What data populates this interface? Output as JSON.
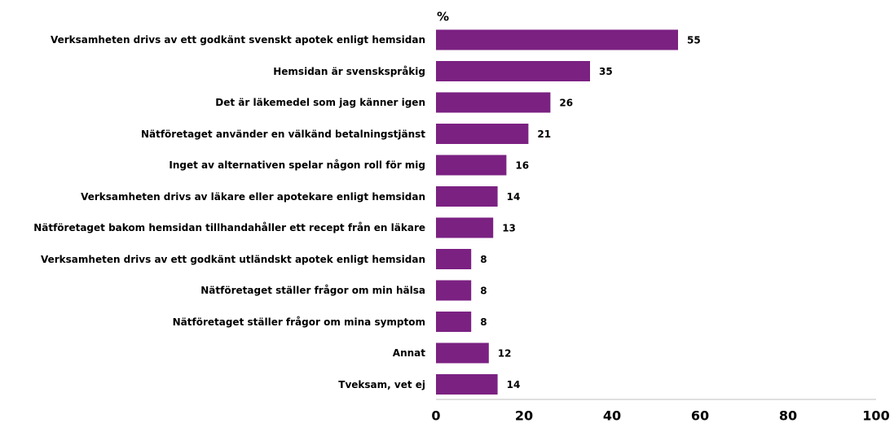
{
  "chart_data": {
    "type": "bar",
    "orientation": "horizontal",
    "unit_label": "%",
    "categories": [
      "Verksamheten drivs av ett godkänt svenskt apotek enligt hemsidan",
      "Hemsidan är svenskspråkig",
      "Det är läkemedel som jag känner igen",
      "Nätföretaget använder en välkänd betalningstjänst",
      "Inget av alternativen spelar någon roll för mig",
      "Verksamheten drivs av läkare eller apotekare enligt hemsidan",
      "Nätföretaget bakom hemsidan tillhandahåller ett recept från en läkare",
      "Verksamheten drivs av ett godkänt utländskt apotek enligt hemsidan",
      "Nätföretaget ställer frågor om min hälsa",
      "Nätföretaget ställer frågor om mina symptom",
      "Annat",
      "Tveksam, vet ej"
    ],
    "values": [
      55,
      35,
      26,
      21,
      16,
      14,
      13,
      8,
      8,
      8,
      12,
      14
    ],
    "color": "#7b2182",
    "xlim": [
      0,
      100
    ],
    "xticks": [
      0,
      20,
      40,
      60,
      80,
      100
    ]
  }
}
